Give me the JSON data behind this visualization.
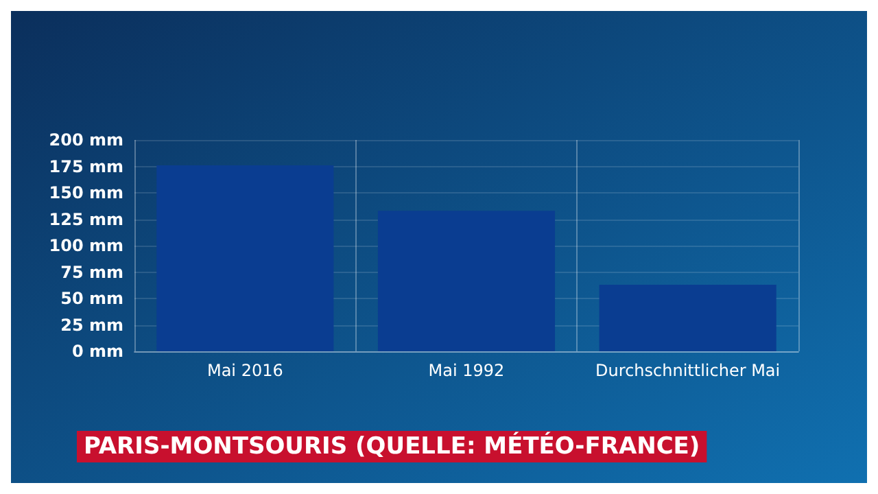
{
  "chart_data": {
    "type": "bar",
    "title": "PARIS-MONTSOURIS (QUELLE: MÉTÉO-FRANCE)",
    "categories": [
      "Mai 2016",
      "Mai 1992",
      "Durchschnittlicher Mai"
    ],
    "values": [
      176,
      133,
      63
    ],
    "color": "#0a3d91",
    "ylim": [
      0,
      200
    ],
    "yticks": [
      {
        "value": 0,
        "label": "0 mm"
      },
      {
        "value": 25,
        "label": "25 mm"
      },
      {
        "value": 50,
        "label": "50 mm"
      },
      {
        "value": 75,
        "label": "75 mm"
      },
      {
        "value": 100,
        "label": "100 mm"
      },
      {
        "value": 125,
        "label": "125 mm"
      },
      {
        "value": 150,
        "label": "150 mm"
      },
      {
        "value": 175,
        "label": "175 mm"
      },
      {
        "value": 200,
        "label": "200 mm"
      }
    ],
    "grid": true
  }
}
